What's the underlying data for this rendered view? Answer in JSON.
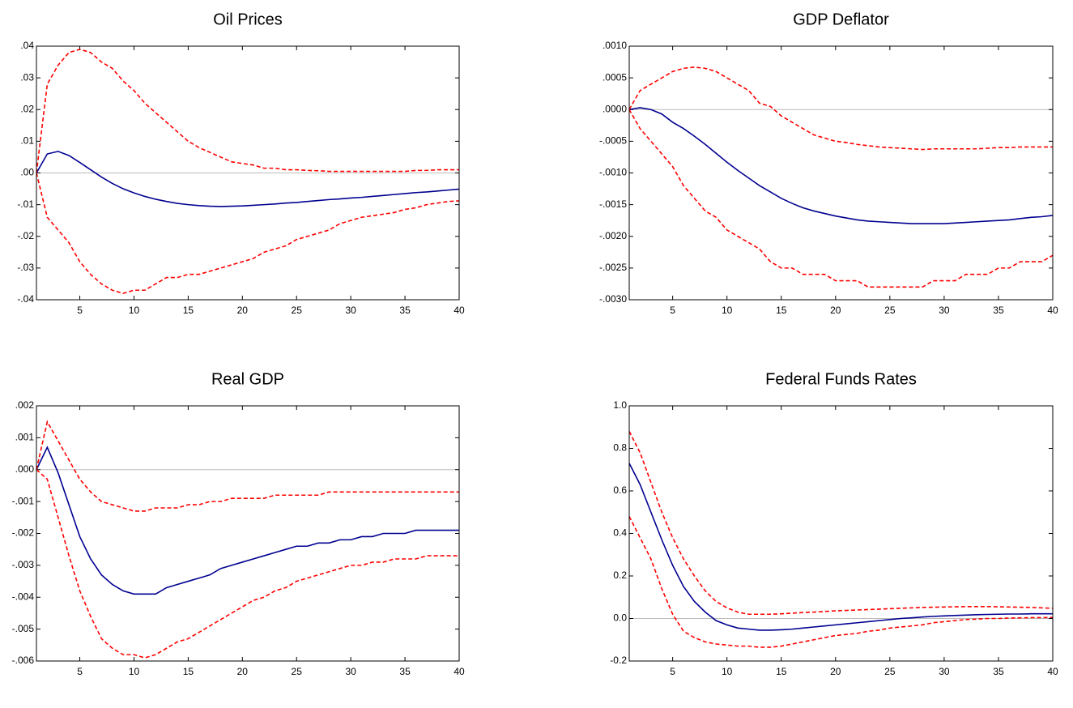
{
  "chart_data": [
    {
      "type": "line",
      "title": "Oil Prices",
      "x": [
        1,
        2,
        3,
        4,
        5,
        6,
        7,
        8,
        9,
        10,
        11,
        12,
        13,
        14,
        15,
        16,
        17,
        18,
        19,
        20,
        21,
        22,
        23,
        24,
        25,
        26,
        27,
        28,
        29,
        30,
        31,
        32,
        33,
        34,
        35,
        36,
        37,
        38,
        39,
        40
      ],
      "xlim": [
        1,
        40
      ],
      "xticks": [
        5,
        10,
        15,
        20,
        25,
        30,
        35,
        40
      ],
      "ylim": [
        -0.04,
        0.04
      ],
      "yticks": [
        {
          "value": 0.04,
          "label": ".04"
        },
        {
          "value": 0.03,
          "label": ".03"
        },
        {
          "value": 0.02,
          "label": ".02"
        },
        {
          "value": 0.01,
          "label": ".01"
        },
        {
          "value": 0,
          "label": ".00"
        },
        {
          "value": -0.01,
          "label": "-.01"
        },
        {
          "value": -0.02,
          "label": "-.02"
        },
        {
          "value": -0.03,
          "label": "-.03"
        },
        {
          "value": -0.04,
          "label": "-.04"
        }
      ],
      "zero_line": true,
      "series": [
        {
          "color": "#000090",
          "style": "solid",
          "values": [
            0,
            0.006,
            0.0068,
            0.0055,
            0.0033,
            0.001,
            -0.0013,
            -0.0033,
            -0.005,
            -0.0063,
            -0.0074,
            -0.0083,
            -0.009,
            -0.0096,
            -0.01,
            -0.0103,
            -0.0105,
            -0.0106,
            -0.0105,
            -0.0104,
            -0.0102,
            -0.01,
            -0.0098,
            -0.0095,
            -0.0093,
            -0.009,
            -0.0087,
            -0.0084,
            -0.0082,
            -0.0079,
            -0.0077,
            -0.0074,
            -0.0071,
            -0.0068,
            -0.0065,
            -0.0062,
            -0.006,
            -0.0057,
            -0.0054,
            -0.0051
          ]
        },
        {
          "color": "#ff0000",
          "style": "dashed",
          "values": [
            0,
            0.028,
            0.034,
            0.038,
            0.039,
            0.038,
            0.035,
            0.033,
            0.029,
            0.026,
            0.022,
            0.019,
            0.016,
            0.013,
            0.01,
            0.008,
            0.0065,
            0.005,
            0.0035,
            0.003,
            0.0025,
            0.0015,
            0.0015,
            0.001,
            0.001,
            0.0008,
            0.0007,
            0.0005,
            0.0005,
            0.0005,
            0.0005,
            0.0005,
            0.0005,
            0.0005,
            0.0005,
            0.0008,
            0.0008,
            0.001,
            0.001,
            0.001
          ]
        },
        {
          "color": "#ff0000",
          "style": "dashed",
          "values": [
            0,
            -0.014,
            -0.018,
            -0.022,
            -0.028,
            -0.032,
            -0.035,
            -0.037,
            -0.038,
            -0.037,
            -0.037,
            -0.035,
            -0.033,
            -0.033,
            -0.032,
            -0.032,
            -0.031,
            -0.03,
            -0.029,
            -0.028,
            -0.027,
            -0.025,
            -0.024,
            -0.023,
            -0.021,
            -0.02,
            -0.019,
            -0.018,
            -0.016,
            -0.015,
            -0.014,
            -0.0135,
            -0.013,
            -0.0125,
            -0.0115,
            -0.011,
            -0.01,
            -0.0095,
            -0.009,
            -0.0088
          ]
        }
      ]
    },
    {
      "type": "line",
      "title": "GDP Deflator",
      "x": [
        1,
        2,
        3,
        4,
        5,
        6,
        7,
        8,
        9,
        10,
        11,
        12,
        13,
        14,
        15,
        16,
        17,
        18,
        19,
        20,
        21,
        22,
        23,
        24,
        25,
        26,
        27,
        28,
        29,
        30,
        31,
        32,
        33,
        34,
        35,
        36,
        37,
        38,
        39,
        40
      ],
      "xlim": [
        1,
        40
      ],
      "xticks": [
        5,
        10,
        15,
        20,
        25,
        30,
        35,
        40
      ],
      "ylim": [
        -0.003,
        0.001
      ],
      "yticks": [
        {
          "value": 0.001,
          "label": ".0010"
        },
        {
          "value": 0.0005,
          "label": ".0005"
        },
        {
          "value": 0,
          "label": ".0000"
        },
        {
          "value": -0.0005,
          "label": "-.0005"
        },
        {
          "value": -0.001,
          "label": "-.0010"
        },
        {
          "value": -0.0015,
          "label": "-.0015"
        },
        {
          "value": -0.002,
          "label": "-.0020"
        },
        {
          "value": -0.0025,
          "label": "-.0025"
        },
        {
          "value": -0.003,
          "label": "-.0030"
        }
      ],
      "zero_line": true,
      "series": [
        {
          "color": "#000090",
          "style": "solid",
          "values": [
            0,
            3e-05,
            0,
            -7e-05,
            -0.0002,
            -0.0003,
            -0.00042,
            -0.00055,
            -0.00069,
            -0.00083,
            -0.00096,
            -0.00108,
            -0.0012,
            -0.0013,
            -0.0014,
            -0.00148,
            -0.00155,
            -0.0016,
            -0.00164,
            -0.00168,
            -0.00171,
            -0.00174,
            -0.00176,
            -0.00177,
            -0.00178,
            -0.00179,
            -0.0018,
            -0.0018,
            -0.0018,
            -0.0018,
            -0.00179,
            -0.00178,
            -0.00177,
            -0.00176,
            -0.00175,
            -0.00174,
            -0.00172,
            -0.0017,
            -0.00169,
            -0.00167
          ]
        },
        {
          "color": "#ff0000",
          "style": "dashed",
          "values": [
            0,
            0.0003,
            0.0004,
            0.0005,
            0.0006,
            0.00065,
            0.00067,
            0.00065,
            0.0006,
            0.0005,
            0.0004,
            0.0003,
            0.0001,
            5e-05,
            -0.0001,
            -0.0002,
            -0.0003,
            -0.0004,
            -0.00045,
            -0.0005,
            -0.00052,
            -0.00055,
            -0.00057,
            -0.00059,
            -0.0006,
            -0.00061,
            -0.00062,
            -0.00063,
            -0.00062,
            -0.00062,
            -0.00062,
            -0.00062,
            -0.00062,
            -0.00061,
            -0.0006,
            -0.0006,
            -0.00059,
            -0.00059,
            -0.00059,
            -0.00059
          ]
        },
        {
          "color": "#ff0000",
          "style": "dashed",
          "values": [
            0,
            -0.0003,
            -0.0005,
            -0.0007,
            -0.0009,
            -0.0012,
            -0.0014,
            -0.0016,
            -0.0017,
            -0.0019,
            -0.002,
            -0.0021,
            -0.0022,
            -0.0024,
            -0.0025,
            -0.0025,
            -0.0026,
            -0.0026,
            -0.0026,
            -0.0027,
            -0.0027,
            -0.0027,
            -0.0028,
            -0.0028,
            -0.0028,
            -0.0028,
            -0.0028,
            -0.0028,
            -0.0027,
            -0.0027,
            -0.0027,
            -0.0026,
            -0.0026,
            -0.0026,
            -0.0025,
            -0.0025,
            -0.0024,
            -0.0024,
            -0.0024,
            -0.0023
          ]
        }
      ]
    },
    {
      "type": "line",
      "title": "Real GDP",
      "x": [
        1,
        2,
        3,
        4,
        5,
        6,
        7,
        8,
        9,
        10,
        11,
        12,
        13,
        14,
        15,
        16,
        17,
        18,
        19,
        20,
        21,
        22,
        23,
        24,
        25,
        26,
        27,
        28,
        29,
        30,
        31,
        32,
        33,
        34,
        35,
        36,
        37,
        38,
        39,
        40
      ],
      "xlim": [
        1,
        40
      ],
      "xticks": [
        5,
        10,
        15,
        20,
        25,
        30,
        35,
        40
      ],
      "ylim": [
        -0.006,
        0.002
      ],
      "yticks": [
        {
          "value": 0.002,
          "label": ".002"
        },
        {
          "value": 0.001,
          "label": ".001"
        },
        {
          "value": 0,
          "label": ".000"
        },
        {
          "value": -0.001,
          "label": "-.001"
        },
        {
          "value": -0.002,
          "label": "-.002"
        },
        {
          "value": -0.003,
          "label": "-.003"
        },
        {
          "value": -0.004,
          "label": "-.004"
        },
        {
          "value": -0.005,
          "label": "-.005"
        },
        {
          "value": -0.006,
          "label": "-.006"
        }
      ],
      "zero_line": true,
      "series": [
        {
          "color": "#000090",
          "style": "solid",
          "values": [
            0,
            0.0007,
            -0.0001,
            -0.0011,
            -0.0021,
            -0.0028,
            -0.0033,
            -0.0036,
            -0.0038,
            -0.0039,
            -0.0039,
            -0.0039,
            -0.0037,
            -0.0036,
            -0.0035,
            -0.0034,
            -0.0033,
            -0.0031,
            -0.003,
            -0.0029,
            -0.0028,
            -0.0027,
            -0.0026,
            -0.0025,
            -0.0024,
            -0.0024,
            -0.0023,
            -0.0023,
            -0.0022,
            -0.0022,
            -0.0021,
            -0.0021,
            -0.002,
            -0.002,
            -0.002,
            -0.0019,
            -0.0019,
            -0.0019,
            -0.0019,
            -0.0019
          ]
        },
        {
          "color": "#ff0000",
          "style": "dashed",
          "values": [
            0,
            0.0015,
            0.0009,
            0.0003,
            -0.0003,
            -0.0007,
            -0.001,
            -0.0011,
            -0.0012,
            -0.0013,
            -0.0013,
            -0.0012,
            -0.0012,
            -0.0012,
            -0.0011,
            -0.0011,
            -0.001,
            -0.001,
            -0.0009,
            -0.0009,
            -0.0009,
            -0.0009,
            -0.0008,
            -0.0008,
            -0.0008,
            -0.0008,
            -0.0008,
            -0.0007,
            -0.0007,
            -0.0007,
            -0.0007,
            -0.0007,
            -0.0007,
            -0.0007,
            -0.0007,
            -0.0007,
            -0.0007,
            -0.0007,
            -0.0007,
            -0.0007
          ]
        },
        {
          "color": "#ff0000",
          "style": "dashed",
          "values": [
            0,
            -0.0003,
            -0.0015,
            -0.0027,
            -0.0038,
            -0.0046,
            -0.0053,
            -0.0056,
            -0.0058,
            -0.0058,
            -0.0059,
            -0.0058,
            -0.0056,
            -0.0054,
            -0.0053,
            -0.0051,
            -0.0049,
            -0.0047,
            -0.0045,
            -0.0043,
            -0.0041,
            -0.004,
            -0.0038,
            -0.0037,
            -0.0035,
            -0.0034,
            -0.0033,
            -0.0032,
            -0.0031,
            -0.003,
            -0.003,
            -0.0029,
            -0.0029,
            -0.0028,
            -0.0028,
            -0.0028,
            -0.0027,
            -0.0027,
            -0.0027,
            -0.0027
          ]
        }
      ]
    },
    {
      "type": "line",
      "title": "Federal Funds Rates",
      "x": [
        1,
        2,
        3,
        4,
        5,
        6,
        7,
        8,
        9,
        10,
        11,
        12,
        13,
        14,
        15,
        16,
        17,
        18,
        19,
        20,
        21,
        22,
        23,
        24,
        25,
        26,
        27,
        28,
        29,
        30,
        31,
        32,
        33,
        34,
        35,
        36,
        37,
        38,
        39,
        40
      ],
      "xlim": [
        1,
        40
      ],
      "xticks": [
        5,
        10,
        15,
        20,
        25,
        30,
        35,
        40
      ],
      "ylim": [
        -0.2,
        1.0
      ],
      "yticks": [
        {
          "value": 1,
          "label": "1.0"
        },
        0.8,
        0.6,
        0.4,
        0.2,
        {
          "value": 0,
          "label": "0.0"
        },
        -0.2
      ],
      "zero_line": true,
      "series": [
        {
          "color": "#000090",
          "style": "solid",
          "values": [
            0.73,
            0.63,
            0.5,
            0.37,
            0.25,
            0.15,
            0.08,
            0.03,
            -0.01,
            -0.03,
            -0.045,
            -0.05,
            -0.055,
            -0.055,
            -0.053,
            -0.05,
            -0.045,
            -0.04,
            -0.035,
            -0.03,
            -0.025,
            -0.02,
            -0.015,
            -0.01,
            -0.005,
            0,
            0.003,
            0.007,
            0.01,
            0.012,
            0.014,
            0.016,
            0.018,
            0.019,
            0.02,
            0.021,
            0.021,
            0.022,
            0.022,
            0.022
          ]
        },
        {
          "color": "#ff0000",
          "style": "dashed",
          "values": [
            0.88,
            0.78,
            0.64,
            0.5,
            0.38,
            0.28,
            0.2,
            0.13,
            0.08,
            0.05,
            0.03,
            0.02,
            0.02,
            0.02,
            0.022,
            0.025,
            0.028,
            0.03,
            0.033,
            0.036,
            0.038,
            0.04,
            0.042,
            0.044,
            0.046,
            0.048,
            0.05,
            0.052,
            0.053,
            0.054,
            0.055,
            0.056,
            0.056,
            0.056,
            0.055,
            0.054,
            0.053,
            0.052,
            0.05,
            0.048
          ]
        },
        {
          "color": "#ff0000",
          "style": "dashed",
          "values": [
            0.48,
            0.38,
            0.28,
            0.14,
            0.02,
            -0.06,
            -0.09,
            -0.11,
            -0.12,
            -0.125,
            -0.13,
            -0.13,
            -0.135,
            -0.135,
            -0.13,
            -0.12,
            -0.11,
            -0.1,
            -0.09,
            -0.08,
            -0.075,
            -0.07,
            -0.06,
            -0.055,
            -0.045,
            -0.04,
            -0.035,
            -0.03,
            -0.02,
            -0.015,
            -0.01,
            -0.005,
            -0.003,
            0,
            0,
            0.002,
            0.003,
            0.004,
            0.004,
            0.005
          ]
        }
      ]
    }
  ]
}
